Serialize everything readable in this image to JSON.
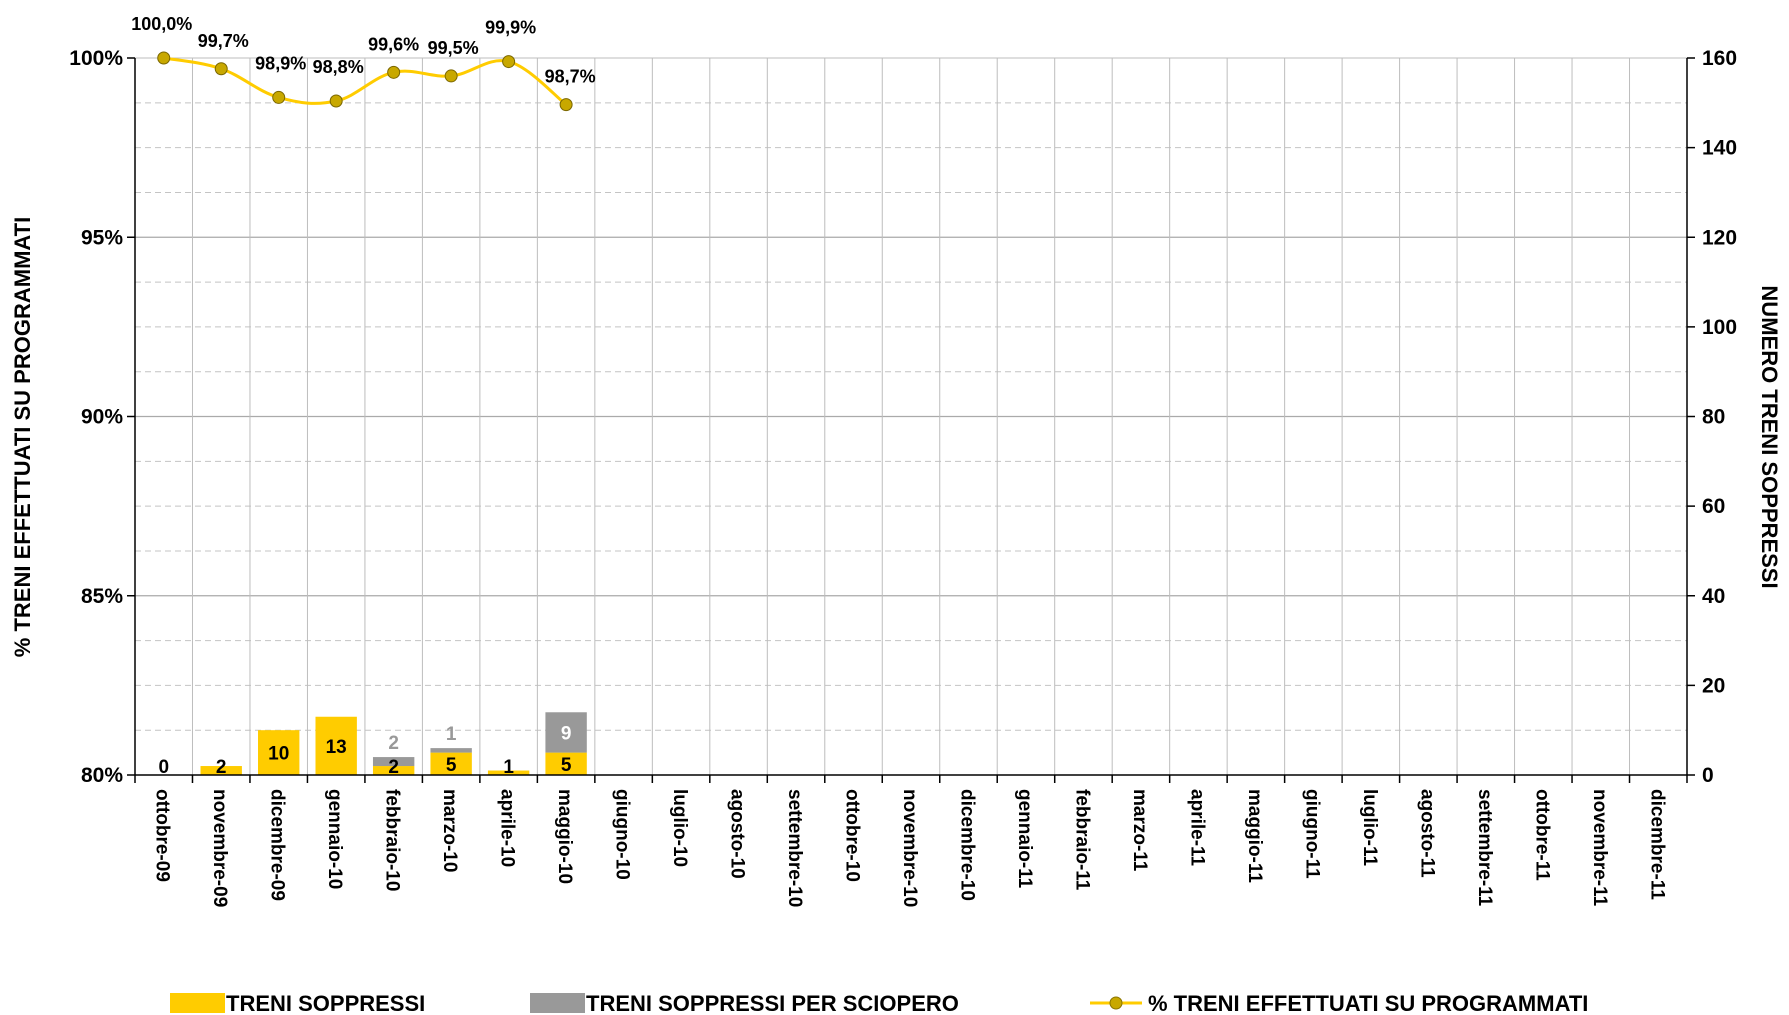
{
  "chart_data": {
    "type": "bar",
    "categories": [
      "ottobre-09",
      "novembre-09",
      "dicembre-09",
      "gennaio-10",
      "febbraio-10",
      "marzo-10",
      "aprile-10",
      "maggio-10",
      "giugno-10",
      "luglio-10",
      "agosto-10",
      "settembre-10",
      "ottobre-10",
      "novembre-10",
      "dicembre-10",
      "gennaio-11",
      "febbraio-11",
      "marzo-11",
      "aprile-11",
      "maggio-11",
      "giugno-11",
      "luglio-11",
      "agosto-11",
      "settembre-11",
      "ottobre-11",
      "novembre-11",
      "dicembre-11"
    ],
    "series": [
      {
        "name": "TRENI SOPPRESSI",
        "type": "bar",
        "axis": "right",
        "color": "#FFCC00",
        "values": [
          0,
          2,
          10,
          13,
          2,
          5,
          1,
          5,
          null,
          null,
          null,
          null,
          null,
          null,
          null,
          null,
          null,
          null,
          null,
          null,
          null,
          null,
          null,
          null,
          null,
          null,
          null
        ],
        "labels": [
          "0",
          "2",
          "10",
          "13",
          "2",
          "5",
          "1",
          "5",
          "",
          "",
          "",
          "",
          "",
          "",
          "",
          "",
          "",
          "",
          "",
          "",
          "",
          "",
          "",
          "",
          "",
          "",
          ""
        ]
      },
      {
        "name": "TRENI SOPPRESSI PER SCIOPERO",
        "type": "bar",
        "axis": "right",
        "stacked": true,
        "color": "#999999",
        "values": [
          0,
          0,
          0,
          0,
          2,
          1,
          0,
          9,
          null,
          null,
          null,
          null,
          null,
          null,
          null,
          null,
          null,
          null,
          null,
          null,
          null,
          null,
          null,
          null,
          null,
          null,
          null
        ],
        "labels": [
          "",
          "",
          "",
          "",
          "2",
          "1",
          "",
          "9",
          "",
          "",
          "",
          "",
          "",
          "",
          "",
          "",
          "",
          "",
          "",
          "",
          "",
          "",
          "",
          "",
          "",
          "",
          ""
        ]
      },
      {
        "name": "% TRENI EFFETTUATI SU PROGRAMMATI",
        "type": "line",
        "axis": "left",
        "color": "#FFCC00",
        "marker_fill": "#C8A800",
        "values": [
          100.0,
          99.7,
          98.9,
          98.8,
          99.6,
          99.5,
          99.9,
          98.7,
          null,
          null,
          null,
          null,
          null,
          null,
          null,
          null,
          null,
          null,
          null,
          null,
          null,
          null,
          null,
          null,
          null,
          null,
          null
        ],
        "labels": [
          "100,0%",
          "99,7%",
          "98,9%",
          "98,8%",
          "99,6%",
          "99,5%",
          "99,9%",
          "98,7%",
          "",
          "",
          "",
          "",
          "",
          "",
          "",
          "",
          "",
          "",
          "",
          "",
          "",
          "",
          "",
          "",
          "",
          "",
          ""
        ]
      }
    ],
    "y_left": {
      "label": "% TRENI EFFETTUATI SU PROGRAMMATI",
      "min": 80,
      "max": 100,
      "ticks": [
        80,
        85,
        90,
        95,
        100
      ],
      "tick_labels": [
        "80%",
        "85%",
        "90%",
        "95%",
        "100%"
      ]
    },
    "y_right": {
      "label": "NUMERO TRENI SOPPRESSI",
      "min": 0,
      "max": 160,
      "ticks": [
        0,
        20,
        40,
        60,
        80,
        100,
        120,
        140,
        160
      ],
      "tick_labels": [
        "0",
        "20",
        "40",
        "60",
        "80",
        "100",
        "120",
        "140",
        "160"
      ]
    },
    "grid": true,
    "legend_position": "bottom"
  }
}
